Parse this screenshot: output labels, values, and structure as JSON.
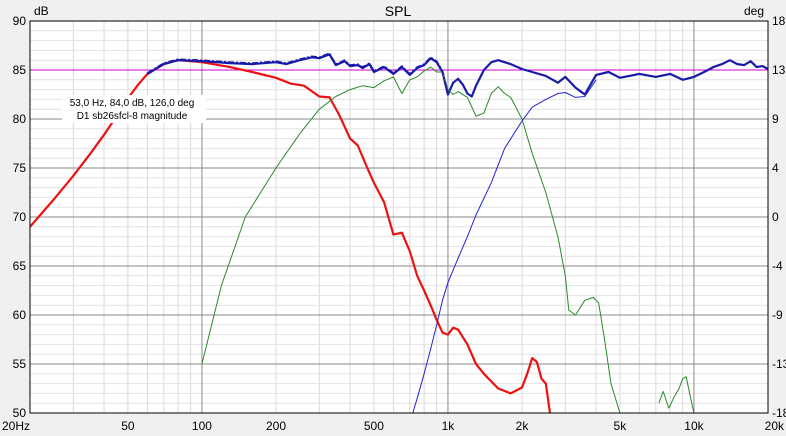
{
  "chart_data": {
    "type": "line",
    "title": "SPL",
    "ylabel_left": "dB",
    "ylabel_right": "deg",
    "x_scale": "log",
    "xlim": [
      20,
      20000
    ],
    "ylim": [
      50,
      90
    ],
    "y2lim": [
      -180,
      180
    ],
    "grid": true,
    "x_tick_labels": [
      {
        "v": 20,
        "t": "20Hz"
      },
      {
        "v": 50,
        "t": "50"
      },
      {
        "v": 100,
        "t": "100"
      },
      {
        "v": 200,
        "t": "200"
      },
      {
        "v": 500,
        "t": "500"
      },
      {
        "v": 1000,
        "t": "1k"
      },
      {
        "v": 2000,
        "t": "2k"
      },
      {
        "v": 5000,
        "t": "5k"
      },
      {
        "v": 10000,
        "t": "10k"
      },
      {
        "v": 20000,
        "t": "20k"
      }
    ],
    "y_ticks": [
      50,
      55,
      60,
      65,
      70,
      75,
      80,
      85,
      90
    ],
    "y2_tick_labels": [
      "-18",
      "-13",
      "-9",
      "-4",
      "0",
      "4",
      "9",
      "13",
      "18"
    ],
    "reference_line": {
      "y": 85,
      "color": "#cc00cc"
    },
    "annotation": {
      "lines": [
        "53,0 Hz, 84,0 dB, 126,0 deg",
        "D1 sb26sfcl-8 magnitude"
      ]
    },
    "series": [
      {
        "color": "#ee1111",
        "x": [
          20,
          25,
          30,
          35,
          40,
          45,
          50,
          55,
          60,
          70,
          80,
          90,
          100,
          130,
          160,
          200,
          230,
          260,
          300,
          330,
          360,
          400,
          430,
          470,
          500,
          550,
          600,
          650,
          700,
          750,
          800,
          850,
          900,
          950,
          1000,
          1050,
          1100,
          1200,
          1300,
          1400,
          1600,
          1800,
          2000,
          2100,
          2200,
          2300,
          2400,
          2500,
          2600
        ],
        "values": [
          69,
          71.8,
          74.2,
          76.4,
          78.4,
          80.3,
          82.1,
          83.5,
          84.6,
          85.6,
          86,
          85.9,
          85.8,
          85.3,
          84.8,
          84.2,
          83.6,
          83.4,
          82.3,
          82.2,
          80.5,
          78,
          77.3,
          75,
          73.5,
          71.5,
          68.2,
          68.4,
          66.5,
          64,
          62.5,
          61,
          59.5,
          58.2,
          58,
          58.7,
          58.5,
          57,
          55,
          54,
          52.5,
          52,
          52.6,
          54,
          55.6,
          55.2,
          53.5,
          53,
          50
        ]
      },
      {
        "color": "#1a1aa8",
        "x": [
          60,
          70,
          80,
          100,
          130,
          160,
          200,
          220,
          250,
          280,
          300,
          330,
          350,
          380,
          400,
          430,
          450,
          480,
          500,
          550,
          600,
          650,
          700,
          750,
          800,
          850,
          900,
          950,
          1000,
          1050,
          1100,
          1150,
          1200,
          1250,
          1300,
          1400,
          1500,
          1600,
          1800,
          2000,
          2200,
          2500,
          2800,
          3000,
          3300,
          3600,
          4000,
          4500,
          5000,
          6000,
          7000,
          8000,
          9000,
          10000,
          11000,
          12000,
          13000,
          14000,
          15000,
          16000,
          17000,
          18000,
          19000,
          20000
        ],
        "values": [
          84.6,
          85.6,
          86,
          85.9,
          85.7,
          85.6,
          85.8,
          85.6,
          86,
          86.3,
          86.2,
          86.6,
          85.5,
          85.9,
          85.4,
          85.5,
          85.2,
          85.6,
          84.8,
          85.3,
          84.6,
          85.3,
          84.5,
          85.2,
          85.5,
          86.2,
          85.8,
          84.8,
          82.5,
          83.7,
          84.1,
          83.5,
          82.6,
          82.3,
          83.4,
          85,
          85.8,
          86,
          85.6,
          85.1,
          84.8,
          84.4,
          83.7,
          84.3,
          83.2,
          82.5,
          84.5,
          84.8,
          84.2,
          84.6,
          84.3,
          84.6,
          84,
          84.3,
          84.8,
          85.3,
          85.6,
          86,
          85.6,
          85.5,
          85.9,
          85.3,
          85.4,
          85.1
        ]
      },
      {
        "color": "#2a8a2a",
        "x": [
          100,
          120,
          150,
          200,
          250,
          300,
          350,
          400,
          450,
          500,
          550,
          600,
          650,
          700,
          750,
          800,
          850,
          900,
          950,
          1000,
          1050,
          1100,
          1200,
          1300,
          1400,
          1500,
          1600,
          1700,
          1800,
          2000,
          2200,
          2500,
          2800,
          3000,
          3100,
          3300,
          3600,
          3900,
          4100,
          4300,
          4600,
          5000,
          5500
        ],
        "values": [
          55,
          63,
          70,
          75,
          78.5,
          81,
          82.3,
          83,
          83.4,
          83.2,
          83.9,
          84.3,
          82.6,
          84,
          84.3,
          84.9,
          85.3,
          84.8,
          84.8,
          83,
          82.5,
          82.8,
          82.2,
          80.3,
          80.6,
          82.6,
          83.3,
          82.6,
          82.2,
          80,
          76.5,
          72.5,
          68,
          64,
          60.5,
          60,
          61.5,
          61.8,
          61.2,
          58,
          53,
          50,
          46
        ]
      },
      {
        "color": "#2a8a2a",
        "x": [
          7200,
          7500,
          7900,
          8300,
          8700,
          9000,
          9300,
          9600,
          10000
        ],
        "values": [
          51,
          52.2,
          50.5,
          51.6,
          52.5,
          53.5,
          53.7,
          52,
          50
        ]
      },
      {
        "color": "#2222dd",
        "x": [
          900,
          950,
          1000,
          1100,
          1200,
          1300,
          1500,
          1700,
          2000,
          2200,
          2500,
          2800,
          3000,
          3300,
          3600,
          4000
        ],
        "values": [
          59,
          61.5,
          63.3,
          65.8,
          68,
          70.2,
          73.5,
          77,
          79.8,
          81.2,
          82,
          82.6,
          82.7,
          82.2,
          82.3,
          84
        ]
      },
      {
        "color": "#2222dd",
        "x": [
          650,
          700,
          750,
          800,
          850,
          900
        ],
        "values": [
          46,
          49,
          51.5,
          54,
          56.5,
          59
        ]
      }
    ]
  }
}
